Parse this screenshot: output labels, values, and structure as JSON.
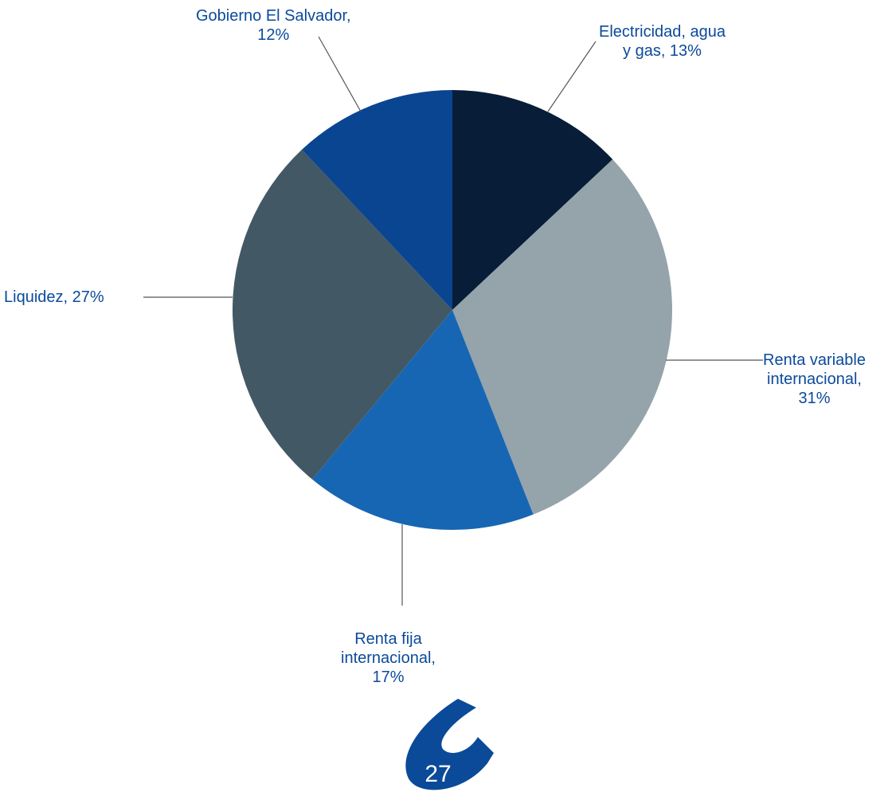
{
  "chart_data": {
    "type": "pie",
    "title": "",
    "slices": [
      {
        "label_lines": [
          "Electricidad, agua",
          "y gas, 13%"
        ],
        "value": 13,
        "color": "#071d38"
      },
      {
        "label_lines": [
          "Renta variable",
          "internacional,",
          "31%"
        ],
        "value": 31,
        "color": "#95a3aa"
      },
      {
        "label_lines": [
          "Renta fija",
          "internacional,",
          "17%"
        ],
        "value": 17,
        "color": "#1766b3"
      },
      {
        "label_lines": [
          "Liquidez, 27%"
        ],
        "value": 27,
        "color": "#435865"
      },
      {
        "label_lines": [
          "Gobierno El Salvador,",
          "12%"
        ],
        "value": 12,
        "color": "#0a4592"
      }
    ],
    "start_angle_deg": 0,
    "direction": "clockwise"
  },
  "footer": {
    "page_number": "27",
    "logo_icon": "brand-c-logo-icon",
    "logo_color": "#0a4a98"
  },
  "colors": {
    "label_text": "#0b4a9b",
    "leader_line": "#555555"
  }
}
